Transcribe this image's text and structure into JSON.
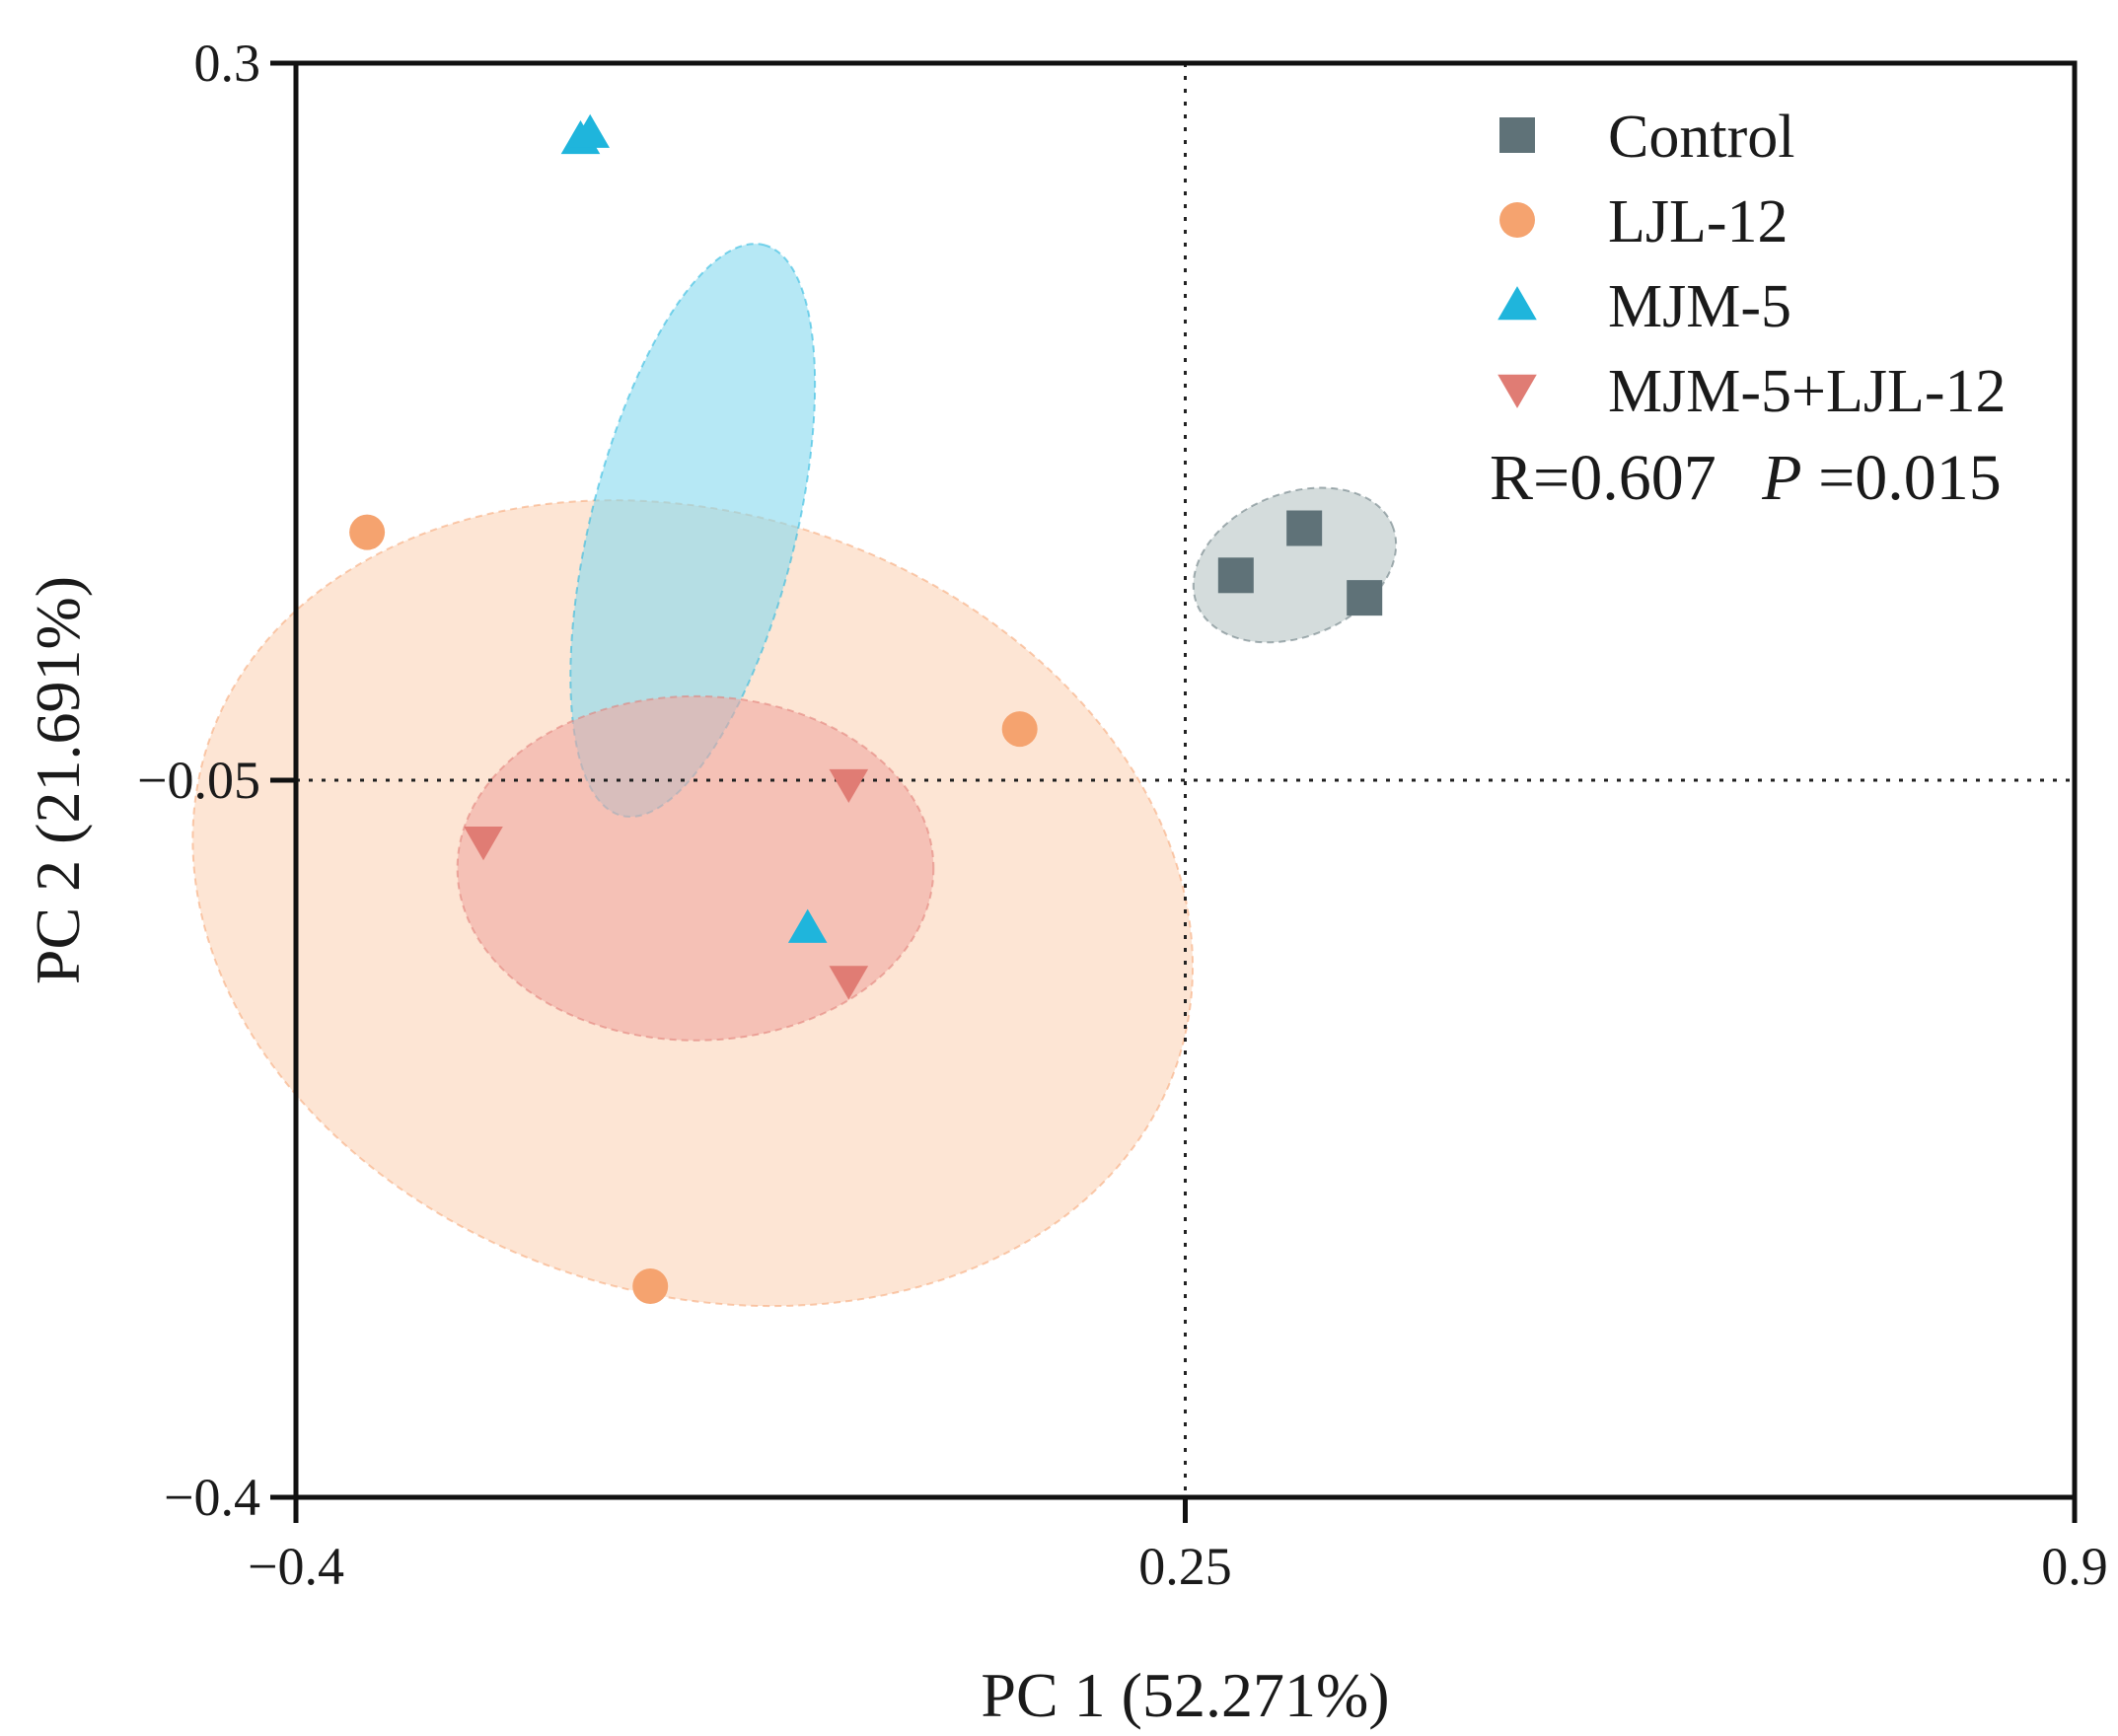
{
  "chart_data": {
    "type": "scatter",
    "title": "",
    "xlabel": "PC 1 (52.271%)",
    "ylabel": "PC 2 (21.691%)",
    "xlim": [
      -0.4,
      0.9
    ],
    "ylim": [
      -0.4,
      0.3
    ],
    "xticks": [
      -0.4,
      0.25,
      0.9
    ],
    "yticks": [
      0.3,
      -0.05,
      -0.4
    ],
    "xtick_labels": [
      "−0.4",
      "0.25",
      "0.9"
    ],
    "ytick_labels": [
      "0.3",
      "−0.05",
      "−0.4"
    ],
    "reference_lines": {
      "x": 0.25,
      "y": -0.05,
      "style": "dotted"
    },
    "grid": false,
    "legend_position": "top-right",
    "series": [
      {
        "name": "Control",
        "marker": "square",
        "color": "#5f7278",
        "ellipse_color": "#b8c4c4",
        "points": [
          [
            0.287,
            0.05
          ],
          [
            0.337,
            0.073
          ],
          [
            0.381,
            0.039
          ]
        ],
        "ellipse": {
          "cx": 0.33,
          "cy": 0.055,
          "rx": 0.077,
          "ry": 0.035,
          "angle_deg": 22
        }
      },
      {
        "name": "LJL-12",
        "marker": "circle",
        "color": "#f5a36f",
        "ellipse_color": "#fbd3b8",
        "points": [
          [
            -0.348,
            0.071
          ],
          [
            0.129,
            -0.025
          ],
          [
            -0.141,
            -0.297
          ]
        ],
        "ellipse": {
          "cx": -0.11,
          "cy": -0.11,
          "rx": 0.285,
          "ry": 0.249,
          "angle_deg": 72
        }
      },
      {
        "name": "MJM-5",
        "marker": "triangle-up",
        "color": "#1fb5dc",
        "ellipse_color": "#86d8ef",
        "points": [
          [
            -0.192,
            0.263
          ],
          [
            -0.185,
            0.266
          ],
          [
            -0.026,
            -0.122
          ]
        ],
        "ellipse": {
          "cx": -0.11,
          "cy": 0.072,
          "rx": 0.215,
          "ry": 0.05,
          "angle_deg": 76
        }
      },
      {
        "name": "MJM-5+LJL-12",
        "marker": "triangle-down",
        "color": "#e07c74",
        "ellipse_color": "#f0a9a1",
        "points": [
          [
            -0.263,
            -0.08
          ],
          [
            0.004,
            -0.052
          ],
          [
            0.004,
            -0.148
          ]
        ],
        "ellipse": {
          "cx": -0.108,
          "cy": -0.093,
          "rx": 0.174,
          "ry": 0.084,
          "angle_deg": 0
        }
      }
    ],
    "annotation": {
      "r_text": "R=0.607",
      "p_symbol": "P",
      "p_text": "=0.015"
    }
  }
}
